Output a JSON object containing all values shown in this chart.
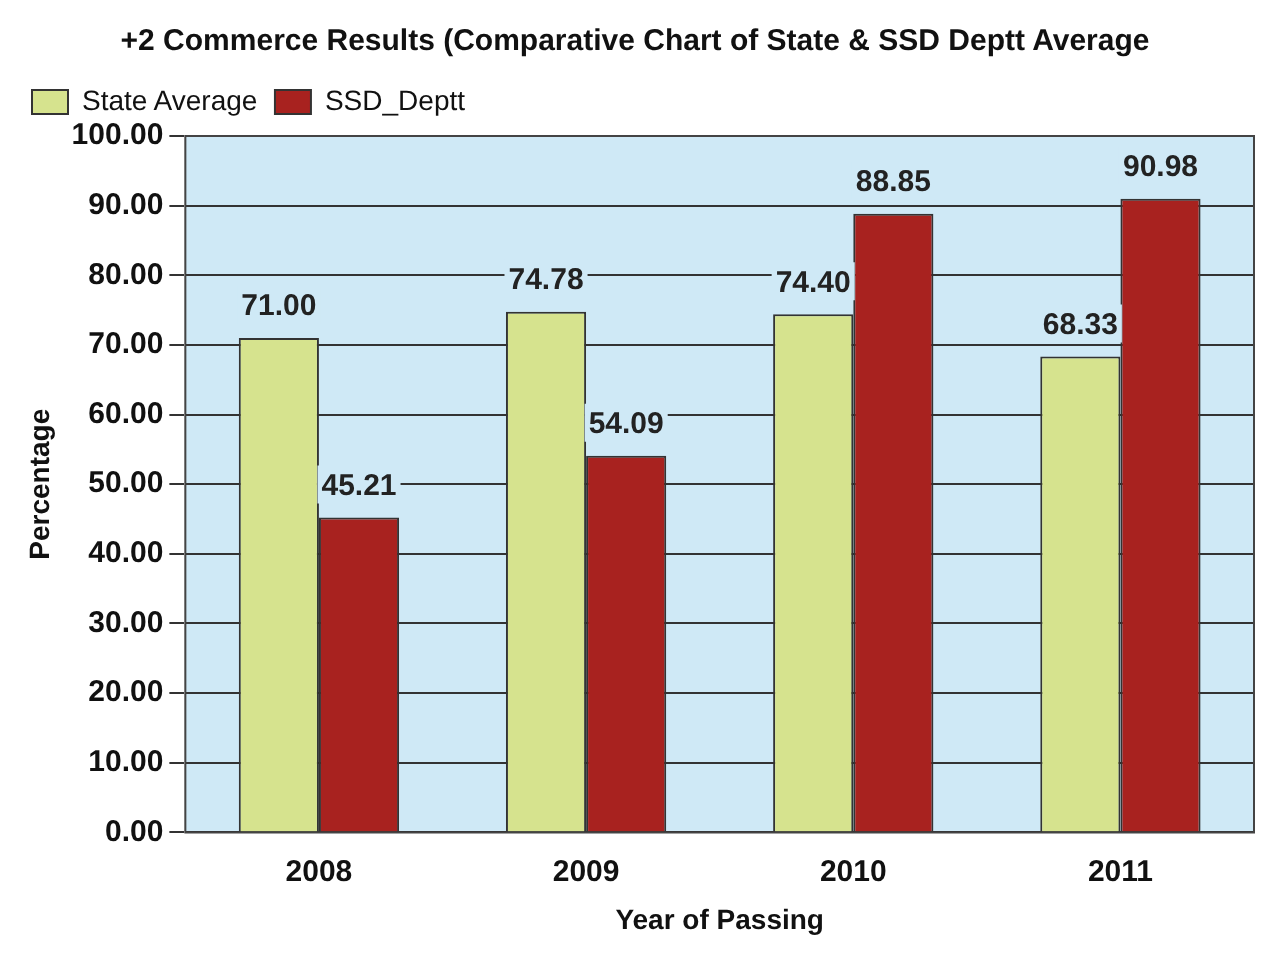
{
  "chart_data": {
    "type": "bar",
    "title": "+2 Commerce Results (Comparative Chart of State & SSD Deptt Average",
    "xlabel": "Year of Passing",
    "ylabel": "Percentage",
    "categories": [
      "2008",
      "2009",
      "2010",
      "2011"
    ],
    "series": [
      {
        "name": "State Average",
        "color": "#d6e38e",
        "values": [
          71.0,
          74.78,
          74.4,
          68.33
        ],
        "value_labels": [
          "71.00",
          "74.78",
          "74.40",
          "68.33"
        ]
      },
      {
        "name": "SSD_Deptt",
        "color": "#a8221f",
        "values": [
          45.21,
          54.09,
          88.85,
          90.98
        ],
        "value_labels": [
          "45.21",
          "54.09",
          "88.85",
          "90.98"
        ]
      }
    ],
    "ylim": [
      0,
      100
    ],
    "yticks": [
      {
        "value": 0,
        "label": "0.00"
      },
      {
        "value": 10,
        "label": "10.00"
      },
      {
        "value": 20,
        "label": "20.00"
      },
      {
        "value": 30,
        "label": "30.00"
      },
      {
        "value": 40,
        "label": "40.00"
      },
      {
        "value": 50,
        "label": "50.00"
      },
      {
        "value": 60,
        "label": "60.00"
      },
      {
        "value": 70,
        "label": "70.00"
      },
      {
        "value": 80,
        "label": "80.00"
      },
      {
        "value": 90,
        "label": "90.00"
      },
      {
        "value": 100,
        "label": "100.00"
      }
    ],
    "grid": "y",
    "legend": "top left"
  }
}
